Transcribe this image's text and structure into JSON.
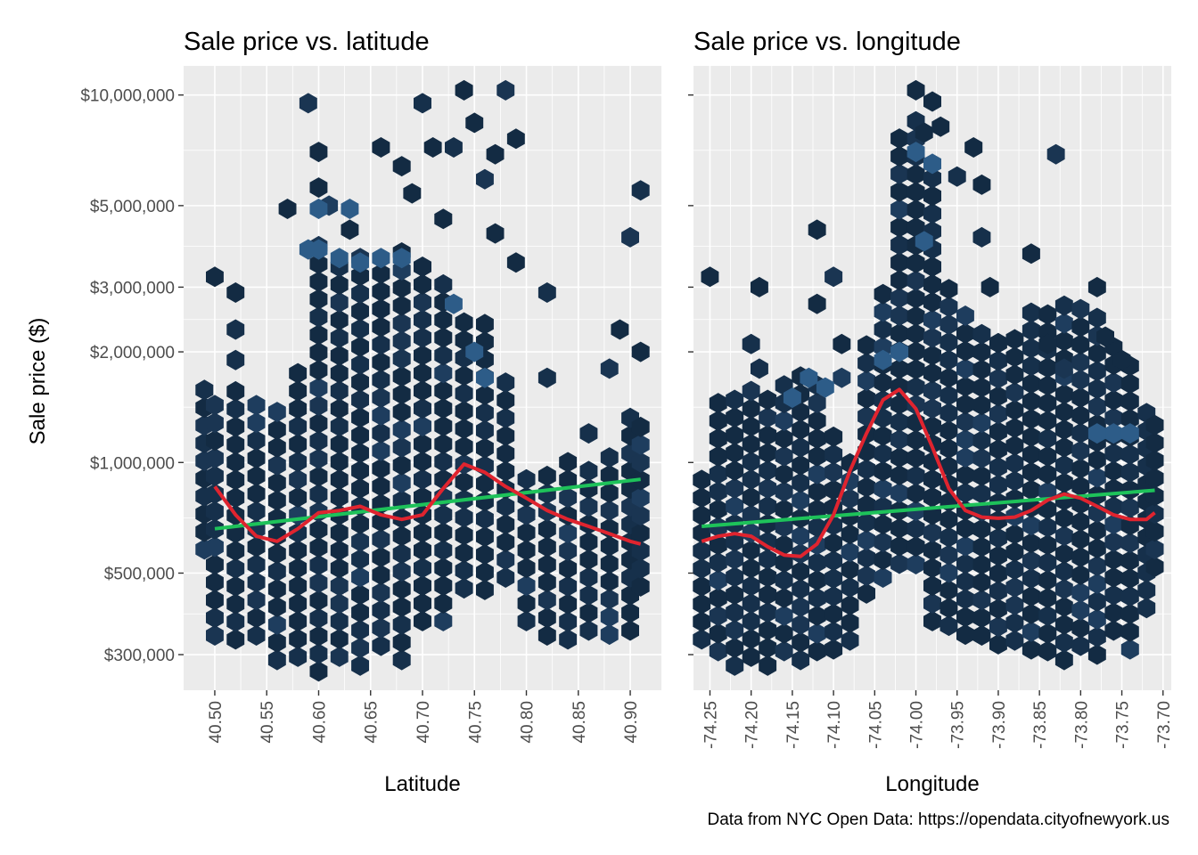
{
  "caption": "Data from NYC Open Data: https://opendata.cityofnewyork.us",
  "y_axis": {
    "label": "Sale price ($)",
    "scale": "log10",
    "range": [
      240000,
      12000000
    ],
    "ticks": [
      300000,
      500000,
      1000000,
      2000000,
      3000000,
      5000000,
      10000000
    ],
    "tick_labels": [
      "$300,000",
      "$500,000",
      "$1,000,000",
      "$2,000,000",
      "$3,000,000",
      "$5,000,000",
      "$10,000,000"
    ]
  },
  "colors": {
    "panel": "#ebebeb",
    "grid": "#ffffff",
    "hex_dark": "#132b43",
    "hex_light": "#336699",
    "lm_line": "#1ec25a",
    "smooth_line": "#e0242f"
  },
  "chart_data": [
    {
      "type": "hexbin",
      "title": "Sale price vs. latitude",
      "xlabel": "Latitude",
      "ylabel": "Sale price ($)",
      "xlim": [
        40.47,
        40.93
      ],
      "ylim": [
        240000,
        12000000
      ],
      "x_ticks": [
        40.5,
        40.55,
        40.6,
        40.65,
        40.7,
        40.75,
        40.8,
        40.85,
        40.9
      ],
      "x_tick_labels": [
        "40.50",
        "40.55",
        "40.60",
        "40.65",
        "40.70",
        "40.75",
        "40.80",
        "40.85",
        "40.90"
      ],
      "lm_line": [
        [
          40.5,
          660000
        ],
        [
          40.91,
          900000
        ]
      ],
      "smooth_line": [
        [
          40.5,
          860000
        ],
        [
          40.52,
          720000
        ],
        [
          40.54,
          630000
        ],
        [
          40.56,
          610000
        ],
        [
          40.58,
          660000
        ],
        [
          40.6,
          730000
        ],
        [
          40.62,
          740000
        ],
        [
          40.64,
          760000
        ],
        [
          40.66,
          720000
        ],
        [
          40.68,
          700000
        ],
        [
          40.7,
          720000
        ],
        [
          40.72,
          850000
        ],
        [
          40.74,
          990000
        ],
        [
          40.76,
          940000
        ],
        [
          40.78,
          860000
        ],
        [
          40.8,
          800000
        ],
        [
          40.82,
          740000
        ],
        [
          40.84,
          700000
        ],
        [
          40.86,
          670000
        ],
        [
          40.88,
          640000
        ],
        [
          40.9,
          610000
        ],
        [
          40.91,
          600000
        ]
      ],
      "hex_columns": [
        {
          "x": 40.49,
          "lo": 580000,
          "hi": 1600000
        },
        {
          "x": 40.5,
          "lo": 320000,
          "hi": 1600000
        },
        {
          "x": 40.52,
          "lo": 330000,
          "hi": 1600000
        },
        {
          "x": 40.54,
          "lo": 320000,
          "hi": 1500000
        },
        {
          "x": 40.56,
          "lo": 290000,
          "hi": 1500000
        },
        {
          "x": 40.58,
          "lo": 280000,
          "hi": 1900000
        },
        {
          "x": 40.6,
          "lo": 270000,
          "hi": 4200000
        },
        {
          "x": 40.62,
          "lo": 280000,
          "hi": 3600000
        },
        {
          "x": 40.64,
          "lo": 280000,
          "hi": 3600000
        },
        {
          "x": 40.66,
          "lo": 300000,
          "hi": 3600000
        },
        {
          "x": 40.68,
          "lo": 290000,
          "hi": 3800000
        },
        {
          "x": 40.7,
          "lo": 350000,
          "hi": 3600000
        },
        {
          "x": 40.72,
          "lo": 370000,
          "hi": 3200000
        },
        {
          "x": 40.74,
          "lo": 430000,
          "hi": 2600000
        },
        {
          "x": 40.76,
          "lo": 450000,
          "hi": 2600000
        },
        {
          "x": 40.78,
          "lo": 460000,
          "hi": 1700000
        },
        {
          "x": 40.8,
          "lo": 370000,
          "hi": 900000
        },
        {
          "x": 40.82,
          "lo": 320000,
          "hi": 1000000
        },
        {
          "x": 40.84,
          "lo": 330000,
          "hi": 1100000
        },
        {
          "x": 40.86,
          "lo": 330000,
          "hi": 1000000
        },
        {
          "x": 40.88,
          "lo": 340000,
          "hi": 1100000
        },
        {
          "x": 40.9,
          "lo": 330000,
          "hi": 1400000
        },
        {
          "x": 40.91,
          "lo": 460000,
          "hi": 1300000
        }
      ],
      "hex_scatter": [
        [
          40.5,
          3200000
        ],
        [
          40.52,
          2900000
        ],
        [
          40.52,
          2300000
        ],
        [
          40.52,
          1900000
        ],
        [
          40.57,
          4900000
        ],
        [
          40.59,
          9500000
        ],
        [
          40.6,
          7000000
        ],
        [
          40.6,
          5600000
        ],
        [
          40.61,
          5000000
        ],
        [
          40.63,
          4300000
        ],
        [
          40.66,
          7200000
        ],
        [
          40.68,
          6400000
        ],
        [
          40.69,
          5400000
        ],
        [
          40.7,
          9500000
        ],
        [
          40.71,
          7200000
        ],
        [
          40.72,
          4600000
        ],
        [
          40.73,
          7200000
        ],
        [
          40.74,
          10300000
        ],
        [
          40.75,
          8400000
        ],
        [
          40.76,
          5900000
        ],
        [
          40.77,
          6900000
        ],
        [
          40.78,
          10300000
        ],
        [
          40.79,
          7600000
        ],
        [
          40.77,
          4200000
        ],
        [
          40.79,
          3500000
        ],
        [
          40.82,
          2900000
        ],
        [
          40.82,
          1700000
        ],
        [
          40.86,
          1200000
        ],
        [
          40.88,
          1800000
        ],
        [
          40.89,
          2300000
        ],
        [
          40.9,
          4100000
        ],
        [
          40.91,
          5500000
        ],
        [
          40.91,
          2000000
        ]
      ],
      "hex_light_band": [
        [
          40.59,
          3800000
        ],
        [
          40.6,
          3800000
        ],
        [
          40.62,
          3600000
        ],
        [
          40.64,
          3500000
        ],
        [
          40.66,
          3600000
        ],
        [
          40.68,
          3600000
        ],
        [
          40.6,
          4900000
        ],
        [
          40.63,
          4900000
        ],
        [
          40.76,
          1700000
        ],
        [
          40.75,
          2000000
        ],
        [
          40.73,
          2700000
        ]
      ]
    },
    {
      "type": "hexbin",
      "title": "Sale price vs. longitude",
      "xlabel": "Longitude",
      "ylabel": "",
      "xlim": [
        -74.27,
        -73.69
      ],
      "ylim": [
        240000,
        12000000
      ],
      "x_ticks": [
        -74.25,
        -74.2,
        -74.15,
        -74.1,
        -74.05,
        -74.0,
        -73.95,
        -73.9,
        -73.85,
        -73.8,
        -73.75,
        -73.7
      ],
      "x_tick_labels": [
        "-74.25",
        "-74.20",
        "-74.15",
        "-74.10",
        "-74.05",
        "-74.00",
        "-73.95",
        "-73.90",
        "-73.85",
        "-73.80",
        "-73.75",
        "-73.70"
      ],
      "lm_line": [
        [
          -74.26,
          670000
        ],
        [
          -73.71,
          840000
        ]
      ],
      "smooth_line": [
        [
          -74.26,
          610000
        ],
        [
          -74.24,
          630000
        ],
        [
          -74.22,
          640000
        ],
        [
          -74.2,
          630000
        ],
        [
          -74.18,
          590000
        ],
        [
          -74.16,
          560000
        ],
        [
          -74.14,
          555000
        ],
        [
          -74.12,
          600000
        ],
        [
          -74.1,
          720000
        ],
        [
          -74.08,
          950000
        ],
        [
          -74.06,
          1200000
        ],
        [
          -74.04,
          1480000
        ],
        [
          -74.02,
          1580000
        ],
        [
          -74.0,
          1400000
        ],
        [
          -73.98,
          1100000
        ],
        [
          -73.96,
          850000
        ],
        [
          -73.94,
          740000
        ],
        [
          -73.92,
          710000
        ],
        [
          -73.9,
          705000
        ],
        [
          -73.88,
          710000
        ],
        [
          -73.86,
          740000
        ],
        [
          -73.84,
          790000
        ],
        [
          -73.82,
          820000
        ],
        [
          -73.8,
          800000
        ],
        [
          -73.78,
          760000
        ],
        [
          -73.76,
          720000
        ],
        [
          -73.74,
          700000
        ],
        [
          -73.72,
          700000
        ],
        [
          -73.71,
          730000
        ]
      ],
      "hex_columns": [
        {
          "x": -74.26,
          "lo": 330000,
          "hi": 900000
        },
        {
          "x": -74.24,
          "lo": 290000,
          "hi": 1600000
        },
        {
          "x": -74.22,
          "lo": 280000,
          "hi": 1600000
        },
        {
          "x": -74.2,
          "lo": 280000,
          "hi": 1600000
        },
        {
          "x": -74.18,
          "lo": 280000,
          "hi": 1600000
        },
        {
          "x": -74.16,
          "lo": 290000,
          "hi": 1700000
        },
        {
          "x": -74.14,
          "lo": 290000,
          "hi": 1800000
        },
        {
          "x": -74.12,
          "lo": 290000,
          "hi": 1700000
        },
        {
          "x": -74.1,
          "lo": 310000,
          "hi": 1300000
        },
        {
          "x": -74.08,
          "lo": 310000,
          "hi": 1000000
        },
        {
          "x": -74.06,
          "lo": 440000,
          "hi": 2300000
        },
        {
          "x": -74.04,
          "lo": 460000,
          "hi": 3000000
        },
        {
          "x": -74.02,
          "lo": 530000,
          "hi": 8500000
        },
        {
          "x": -74.0,
          "lo": 500000,
          "hi": 9000000
        },
        {
          "x": -73.98,
          "lo": 370000,
          "hi": 6000000
        },
        {
          "x": -73.96,
          "lo": 340000,
          "hi": 3200000
        },
        {
          "x": -73.94,
          "lo": 340000,
          "hi": 2700000
        },
        {
          "x": -73.92,
          "lo": 320000,
          "hi": 2300000
        },
        {
          "x": -73.9,
          "lo": 320000,
          "hi": 2300000
        },
        {
          "x": -73.88,
          "lo": 310000,
          "hi": 2300000
        },
        {
          "x": -73.86,
          "lo": 310000,
          "hi": 2600000
        },
        {
          "x": -73.84,
          "lo": 290000,
          "hi": 2800000
        },
        {
          "x": -73.82,
          "lo": 290000,
          "hi": 2800000
        },
        {
          "x": -73.8,
          "lo": 300000,
          "hi": 2700000
        },
        {
          "x": -73.78,
          "lo": 300000,
          "hi": 2600000
        },
        {
          "x": -73.76,
          "lo": 330000,
          "hi": 2200000
        },
        {
          "x": -73.74,
          "lo": 310000,
          "hi": 2000000
        },
        {
          "x": -73.72,
          "lo": 380000,
          "hi": 1500000
        },
        {
          "x": -73.71,
          "lo": 520000,
          "hi": 1300000
        }
      ],
      "hex_scatter": [
        [
          -74.25,
          3200000
        ],
        [
          -74.19,
          3000000
        ],
        [
          -74.2,
          2100000
        ],
        [
          -74.19,
          1800000
        ],
        [
          -74.12,
          4300000
        ],
        [
          -74.1,
          3200000
        ],
        [
          -74.12,
          2700000
        ],
        [
          -74.09,
          2100000
        ],
        [
          -74.09,
          1700000
        ],
        [
          -74.0,
          10300000
        ],
        [
          -73.99,
          7900000
        ],
        [
          -73.98,
          9600000
        ],
        [
          -73.97,
          8200000
        ],
        [
          -73.95,
          6000000
        ],
        [
          -73.93,
          7200000
        ],
        [
          -73.92,
          5700000
        ],
        [
          -73.92,
          4100000
        ],
        [
          -73.91,
          3000000
        ],
        [
          -73.86,
          3700000
        ],
        [
          -73.83,
          6900000
        ],
        [
          -73.84,
          2100000
        ],
        [
          -73.82,
          1800000
        ],
        [
          -73.78,
          3000000
        ],
        [
          -73.77,
          2200000
        ],
        [
          -73.75,
          1900000
        ]
      ],
      "hex_light_band": [
        [
          -74.13,
          1700000
        ],
        [
          -74.15,
          1500000
        ],
        [
          -74.11,
          1600000
        ],
        [
          -74.04,
          1900000
        ],
        [
          -74.02,
          2000000
        ],
        [
          -74.0,
          7000000
        ],
        [
          -73.98,
          6500000
        ],
        [
          -73.99,
          4000000
        ],
        [
          -73.76,
          1200000
        ],
        [
          -73.78,
          1200000
        ],
        [
          -73.74,
          1200000
        ]
      ]
    }
  ]
}
